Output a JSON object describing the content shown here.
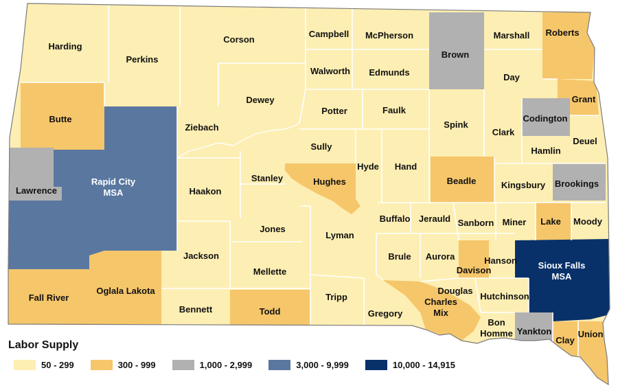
{
  "legend": {
    "title": "Labor Supply",
    "items": [
      {
        "label": "50 - 299",
        "color": "#fdeeb3"
      },
      {
        "label": "300 - 999",
        "color": "#f6c66a"
      },
      {
        "label": "1,000 - 2,999",
        "color": "#b1b1b1"
      },
      {
        "label": "3,000 - 9,999",
        "color": "#5a77a0"
      },
      {
        "label": "10,000 - 14,915",
        "color": "#08316a"
      }
    ]
  },
  "counties": [
    {
      "name": "Harding",
      "category": 0
    },
    {
      "name": "Perkins",
      "category": 0
    },
    {
      "name": "Corson",
      "category": 0
    },
    {
      "name": "Campbell",
      "category": 0
    },
    {
      "name": "McPherson",
      "category": 0
    },
    {
      "name": "Brown",
      "category": 2
    },
    {
      "name": "Marshall",
      "category": 0
    },
    {
      "name": "Roberts",
      "category": 1
    },
    {
      "name": "Walworth",
      "category": 0
    },
    {
      "name": "Edmunds",
      "category": 0
    },
    {
      "name": "Day",
      "category": 0
    },
    {
      "name": "Grant",
      "category": 1
    },
    {
      "name": "Butte",
      "category": 1
    },
    {
      "name": "Dewey",
      "category": 0
    },
    {
      "name": "Potter",
      "category": 0
    },
    {
      "name": "Faulk",
      "category": 0
    },
    {
      "name": "Spink",
      "category": 0
    },
    {
      "name": "Clark",
      "category": 0
    },
    {
      "name": "Codington",
      "category": 2
    },
    {
      "name": "Ziebach",
      "category": 0
    },
    {
      "name": "Deuel",
      "category": 0
    },
    {
      "name": "Hamlin",
      "category": 0
    },
    {
      "name": "Sully",
      "category": 0
    },
    {
      "name": "Hyde",
      "category": 0
    },
    {
      "name": "Hand",
      "category": 0
    },
    {
      "name": "Rapid City MSA",
      "category": 3
    },
    {
      "name": "Lawrence",
      "category": 2
    },
    {
      "name": "Haakon",
      "category": 0
    },
    {
      "name": "Stanley",
      "category": 0
    },
    {
      "name": "Hughes",
      "category": 1
    },
    {
      "name": "Beadle",
      "category": 1
    },
    {
      "name": "Kingsbury",
      "category": 0
    },
    {
      "name": "Brookings",
      "category": 2
    },
    {
      "name": "Jones",
      "category": 0
    },
    {
      "name": "Lyman",
      "category": 0
    },
    {
      "name": "Buffalo",
      "category": 0
    },
    {
      "name": "Jerauld",
      "category": 0
    },
    {
      "name": "Sanborn",
      "category": 0
    },
    {
      "name": "Miner",
      "category": 0
    },
    {
      "name": "Lake",
      "category": 1
    },
    {
      "name": "Moody",
      "category": 0
    },
    {
      "name": "Jackson",
      "category": 0
    },
    {
      "name": "Brule",
      "category": 0
    },
    {
      "name": "Aurora",
      "category": 0
    },
    {
      "name": "Davison",
      "category": 1
    },
    {
      "name": "Hanson",
      "category": 0
    },
    {
      "name": "Sioux Falls MSA",
      "category": 4
    },
    {
      "name": "Mellette",
      "category": 0
    },
    {
      "name": "Fall River",
      "category": 1
    },
    {
      "name": "Oglala Lakota",
      "category": 1
    },
    {
      "name": "Tripp",
      "category": 0
    },
    {
      "name": "Douglas",
      "category": 0
    },
    {
      "name": "Charles Mix",
      "category": 1
    },
    {
      "name": "Hutchinson",
      "category": 0
    },
    {
      "name": "Bennett",
      "category": 0
    },
    {
      "name": "Todd",
      "category": 1
    },
    {
      "name": "Gregory",
      "category": 0
    },
    {
      "name": "Bon Homme",
      "category": 0
    },
    {
      "name": "Yankton",
      "category": 2
    },
    {
      "name": "Clay",
      "category": 1
    },
    {
      "name": "Union",
      "category": 1
    }
  ]
}
